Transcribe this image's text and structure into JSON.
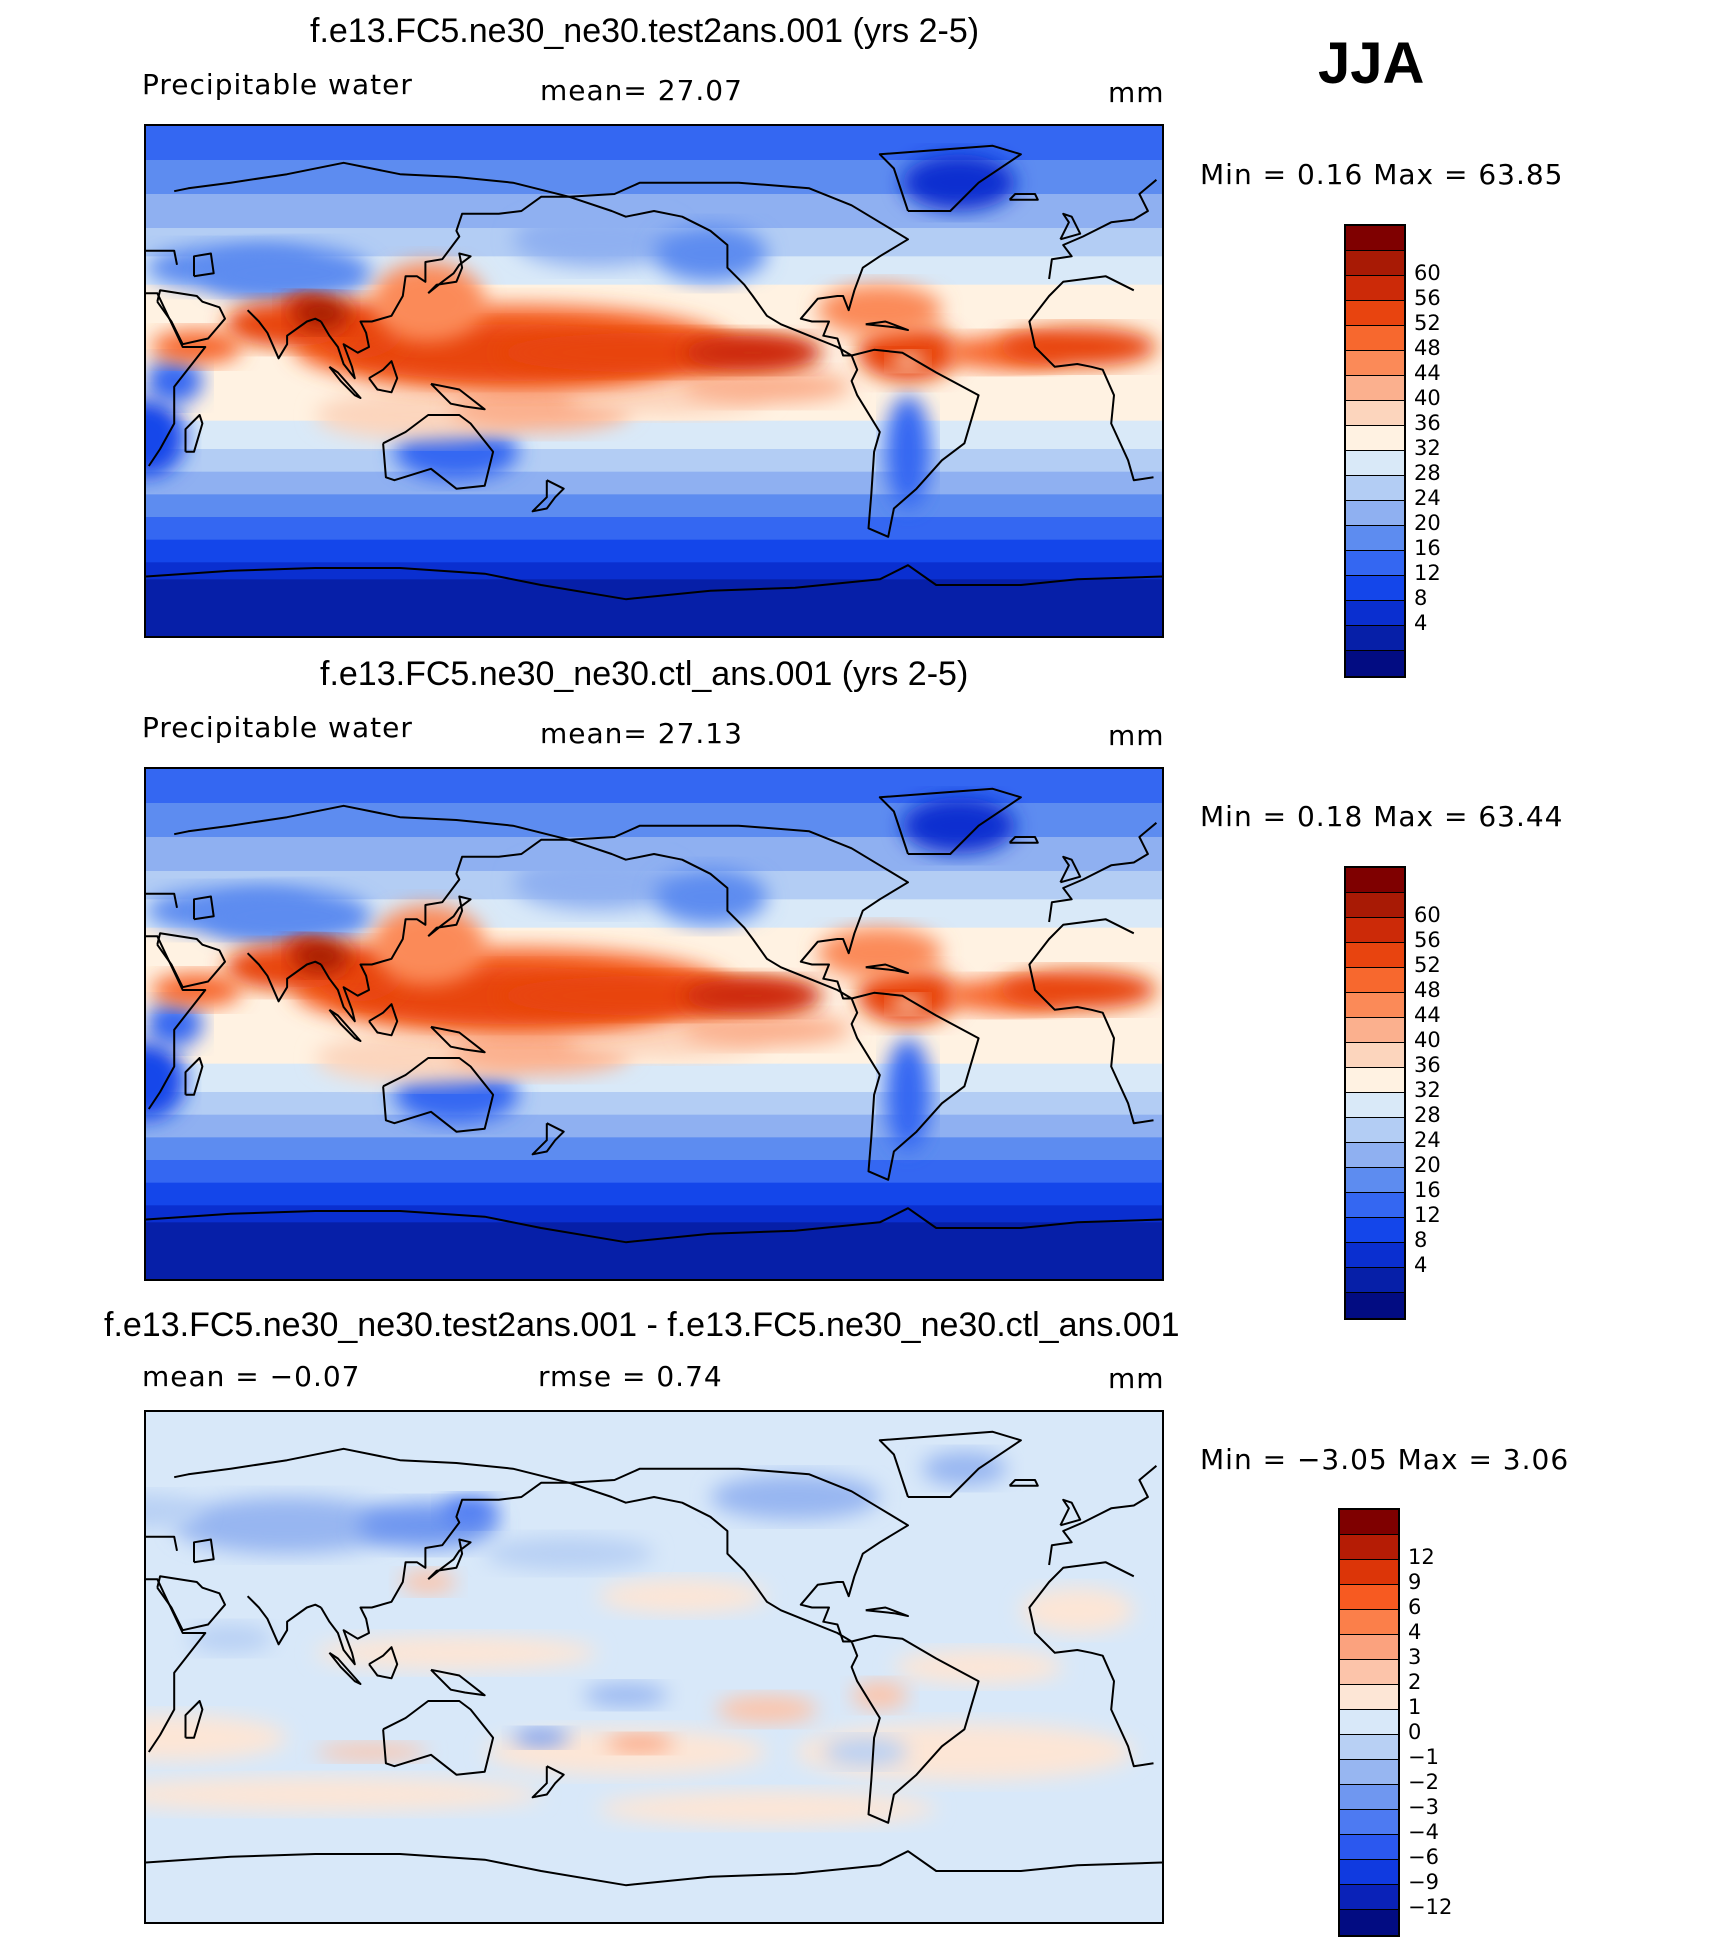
{
  "season": "JJA",
  "panels": [
    {
      "title": "f.e13.FC5.ne30_ne30.test2ans.001 (yrs 2-5)",
      "left_label": "Precipitable  water",
      "center_label": "mean=   27.07",
      "units": "mm",
      "minmax": "Min  =    0.16  Max  =    63.85",
      "colorbar": {
        "labels": [
          "60",
          "56",
          "52",
          "48",
          "44",
          "40",
          "36",
          "32",
          "28",
          "24",
          "20",
          "16",
          "12",
          "8",
          "4"
        ],
        "colors": [
          "#7f0000",
          "#a81a05",
          "#cc2a08",
          "#e8440f",
          "#f7682e",
          "#fb8a58",
          "#fbb08e",
          "#fcd5bd",
          "#fff2e2",
          "#d9e9f8",
          "#b3cdf4",
          "#8fb0f1",
          "#5d8cf0",
          "#3467f2",
          "#1446ea",
          "#0a2fd0",
          "#061fa8",
          "#020c82"
        ]
      }
    },
    {
      "title": "f.e13.FC5.ne30_ne30.ctl_ans.001 (yrs 2-5)",
      "left_label": "Precipitable  water",
      "center_label": "mean=   27.13",
      "units": "mm",
      "minmax": "Min  =    0.18  Max  =    63.44",
      "colorbar": {
        "labels": [
          "60",
          "56",
          "52",
          "48",
          "44",
          "40",
          "36",
          "32",
          "28",
          "24",
          "20",
          "16",
          "12",
          "8",
          "4"
        ],
        "colors": [
          "#7f0000",
          "#a81a05",
          "#cc2a08",
          "#e8440f",
          "#f7682e",
          "#fb8a58",
          "#fbb08e",
          "#fcd5bd",
          "#fff2e2",
          "#d9e9f8",
          "#b3cdf4",
          "#8fb0f1",
          "#5d8cf0",
          "#3467f2",
          "#1446ea",
          "#0a2fd0",
          "#061fa8",
          "#020c82"
        ]
      }
    },
    {
      "title": "f.e13.FC5.ne30_ne30.test2ans.001 - f.e13.FC5.ne30_ne30.ctl_ans.001",
      "left_label": "mean  =    −0.07",
      "center_label": "rmse  =     0.74",
      "units": "mm",
      "minmax": "Min  =   −3.05  Max  =      3.06",
      "colorbar": {
        "labels": [
          "12",
          "9",
          "6",
          "4",
          "3",
          "2",
          "1",
          "0",
          "−1",
          "−2",
          "−3",
          "−4",
          "−6",
          "−9",
          "−12"
        ],
        "colors": [
          "#7f0000",
          "#b51c05",
          "#dc3508",
          "#f75a21",
          "#fb7f4a",
          "#fba27e",
          "#fcc4aa",
          "#fde6d6",
          "#d8e8f9",
          "#b8d0f4",
          "#97b6f1",
          "#6f97f0",
          "#4d7af2",
          "#2b58ef",
          "#103ae0",
          "#0a22b8",
          "#020c82"
        ]
      }
    }
  ]
}
